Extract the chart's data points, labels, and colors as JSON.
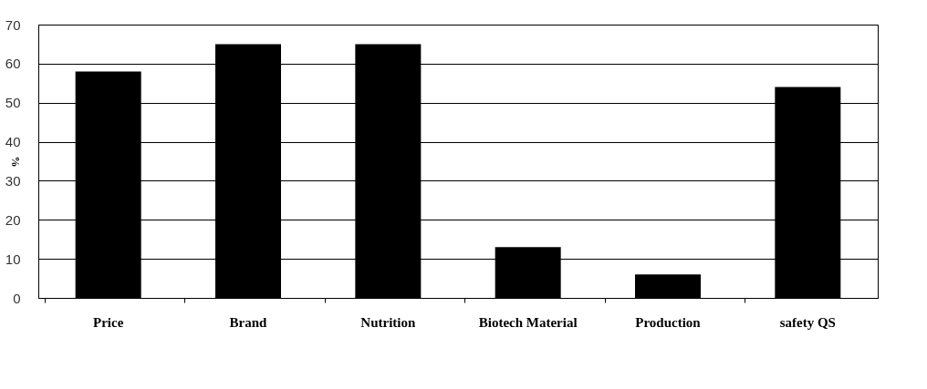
{
  "chart_data": {
    "type": "bar",
    "ylabel": "%",
    "categories": [
      "Price",
      "Brand",
      "Nutrition",
      "Biotech Material",
      "Production",
      "safety QS"
    ],
    "values": [
      58,
      65,
      65,
      13,
      6,
      54
    ],
    "color": "#000000",
    "ylim": [
      0,
      70
    ],
    "yticks": [
      0,
      10,
      20,
      30,
      40,
      50,
      60,
      70
    ],
    "grid": "y"
  }
}
